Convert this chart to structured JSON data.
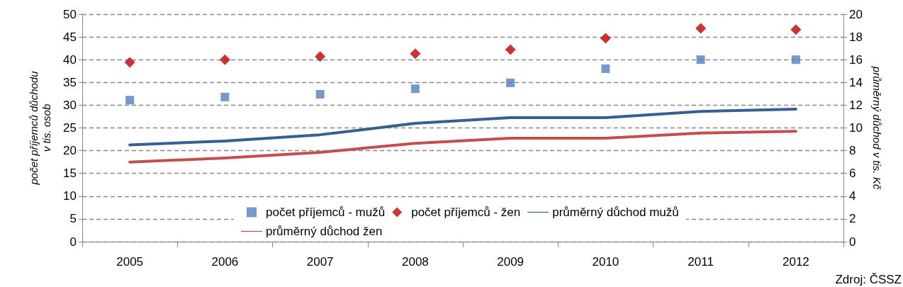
{
  "chart_data": {
    "type": "scatter",
    "categories": [
      "2005",
      "2006",
      "2007",
      "2008",
      "2009",
      "2010",
      "2011",
      "2012"
    ],
    "ylabel": "počet příjemců důchodu\nv tis. osob",
    "y2label": "průměrný důchod v tis. Kč",
    "ylim": [
      0,
      50
    ],
    "yticks": [
      0,
      5,
      10,
      15,
      20,
      25,
      30,
      35,
      40,
      45,
      50
    ],
    "y2lim": [
      0,
      20
    ],
    "y2ticks": [
      0,
      2,
      4,
      6,
      8,
      10,
      12,
      14,
      16,
      18,
      20
    ],
    "grid": "y",
    "legend": "bottom",
    "annotations": [
      "Zdroj: ČSSZ"
    ],
    "series": [
      {
        "name": "počet příjemců - mužů",
        "marker": "square",
        "color": "#4f81bd",
        "values": [
          31.1,
          31.8,
          32.4,
          33.6,
          34.9,
          38.0,
          40.0,
          40.0
        ]
      },
      {
        "name": "počet příjemců - žen",
        "marker": "diamond",
        "color": "#c00000",
        "values": [
          39.4,
          40.0,
          40.7,
          41.3,
          42.2,
          44.7,
          46.9,
          46.6
        ]
      },
      {
        "name": "průměrný důchod mužů",
        "type": "line",
        "marker": "none",
        "axis": "y2",
        "color": "#376092",
        "values": [
          8.5,
          8.85,
          9.4,
          10.4,
          10.9,
          10.9,
          11.45,
          11.65
        ]
      },
      {
        "name": "průměrný důchod žen",
        "type": "line",
        "marker": "none",
        "axis": "y2",
        "color": "#c0504d",
        "values": [
          7.0,
          7.35,
          7.85,
          8.65,
          9.1,
          9.1,
          9.55,
          9.7
        ]
      }
    ]
  }
}
